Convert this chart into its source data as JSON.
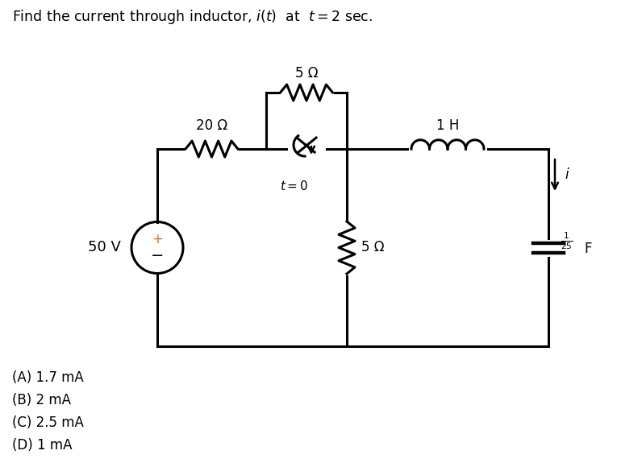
{
  "title_text": "Find the current through inductor, $i(t)$  at  $t = 2$ sec.",
  "answer_choices": [
    "(A) 1.7 mA",
    "(B) 2 mA",
    "(C) 2.5 mA",
    "(D) 1 mA"
  ],
  "bg_color": "#ffffff",
  "line_color": "#000000",
  "source_label": "50 V",
  "r1_label": "20 Ω",
  "r2_label": "5 Ω",
  "r3_label": "5 Ω",
  "l_label": "1 H",
  "c_label": "\\frac{1}{25}",
  "c_unit": "F",
  "switch_label": "t = 0",
  "current_label": "i"
}
